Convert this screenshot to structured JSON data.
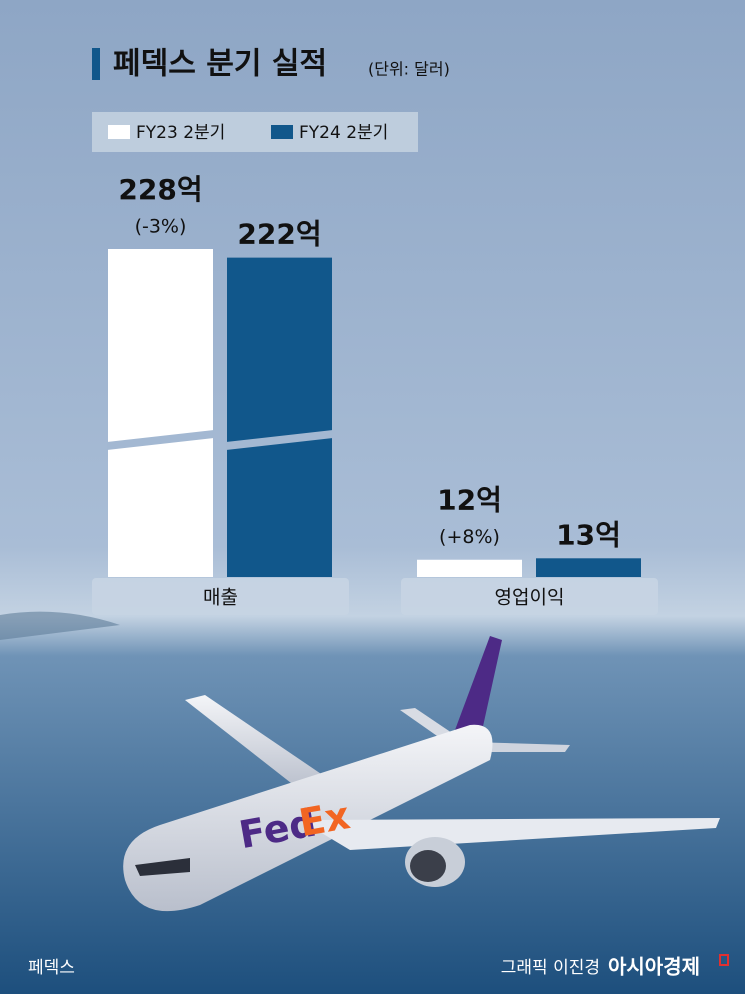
{
  "chart_data": {
    "type": "bar",
    "title": "페덱스 분기 실적",
    "unit": "(단위: 달러)",
    "categories": [
      "매출",
      "영업이익"
    ],
    "series": [
      {
        "name": "FY23 2분기",
        "color": "#ffffff",
        "values": [
          228,
          12
        ],
        "value_labels": [
          "228억",
          "12억"
        ],
        "change_labels": [
          "(-3%)",
          "(+8%)"
        ]
      },
      {
        "name": "FY24 2분기",
        "color": "#11578b",
        "values": [
          222,
          13
        ],
        "value_labels": [
          "222억",
          "13억"
        ]
      }
    ],
    "source": "페덱스",
    "credit": "그래픽 이진경",
    "publisher": "아시아경제"
  }
}
